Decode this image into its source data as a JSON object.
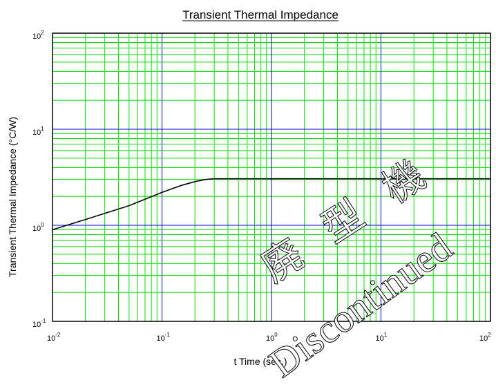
{
  "chart_data": {
    "type": "line",
    "title": "Transient Thermal Impedance",
    "xlabel": "t    Time    (sec.)",
    "ylabel": "Transient Thermal Impedance    (°C/W)",
    "xscale": "log",
    "yscale": "log",
    "xlim": [
      0.01,
      100
    ],
    "ylim": [
      0.1,
      100
    ],
    "x_ticks": [
      {
        "base": "10",
        "exp": "-2",
        "value": 0.01
      },
      {
        "base": "10",
        "exp": "-1",
        "value": 0.1
      },
      {
        "base": "10",
        "exp": "0",
        "value": 1
      },
      {
        "base": "10",
        "exp": "1",
        "value": 10
      },
      {
        "base": "10",
        "exp": "2",
        "value": 100
      }
    ],
    "y_ticks": [
      {
        "base": "10",
        "exp": "-1",
        "value": 0.1
      },
      {
        "base": "10",
        "exp": "0",
        "value": 1
      },
      {
        "base": "10",
        "exp": "1",
        "value": 10
      },
      {
        "base": "10",
        "exp": "2",
        "value": 100
      }
    ],
    "grid": true,
    "grid_minor_color": "#00dd00",
    "grid_major_color": "#0000cc",
    "series": [
      {
        "color": "#000000",
        "x": [
          0.01,
          0.02,
          0.05,
          0.1,
          0.15,
          0.2,
          0.25,
          0.3,
          0.5,
          1,
          2,
          5,
          10,
          20,
          50,
          100
        ],
        "y": [
          0.9,
          1.15,
          1.6,
          2.2,
          2.6,
          2.85,
          3.0,
          3.05,
          3.05,
          3.05,
          3.05,
          3.05,
          3.05,
          3.05,
          3.05,
          3.05
        ]
      }
    ]
  },
  "watermark": {
    "chars": [
      "廃",
      "型",
      "機"
    ],
    "text": "Discontinued"
  }
}
